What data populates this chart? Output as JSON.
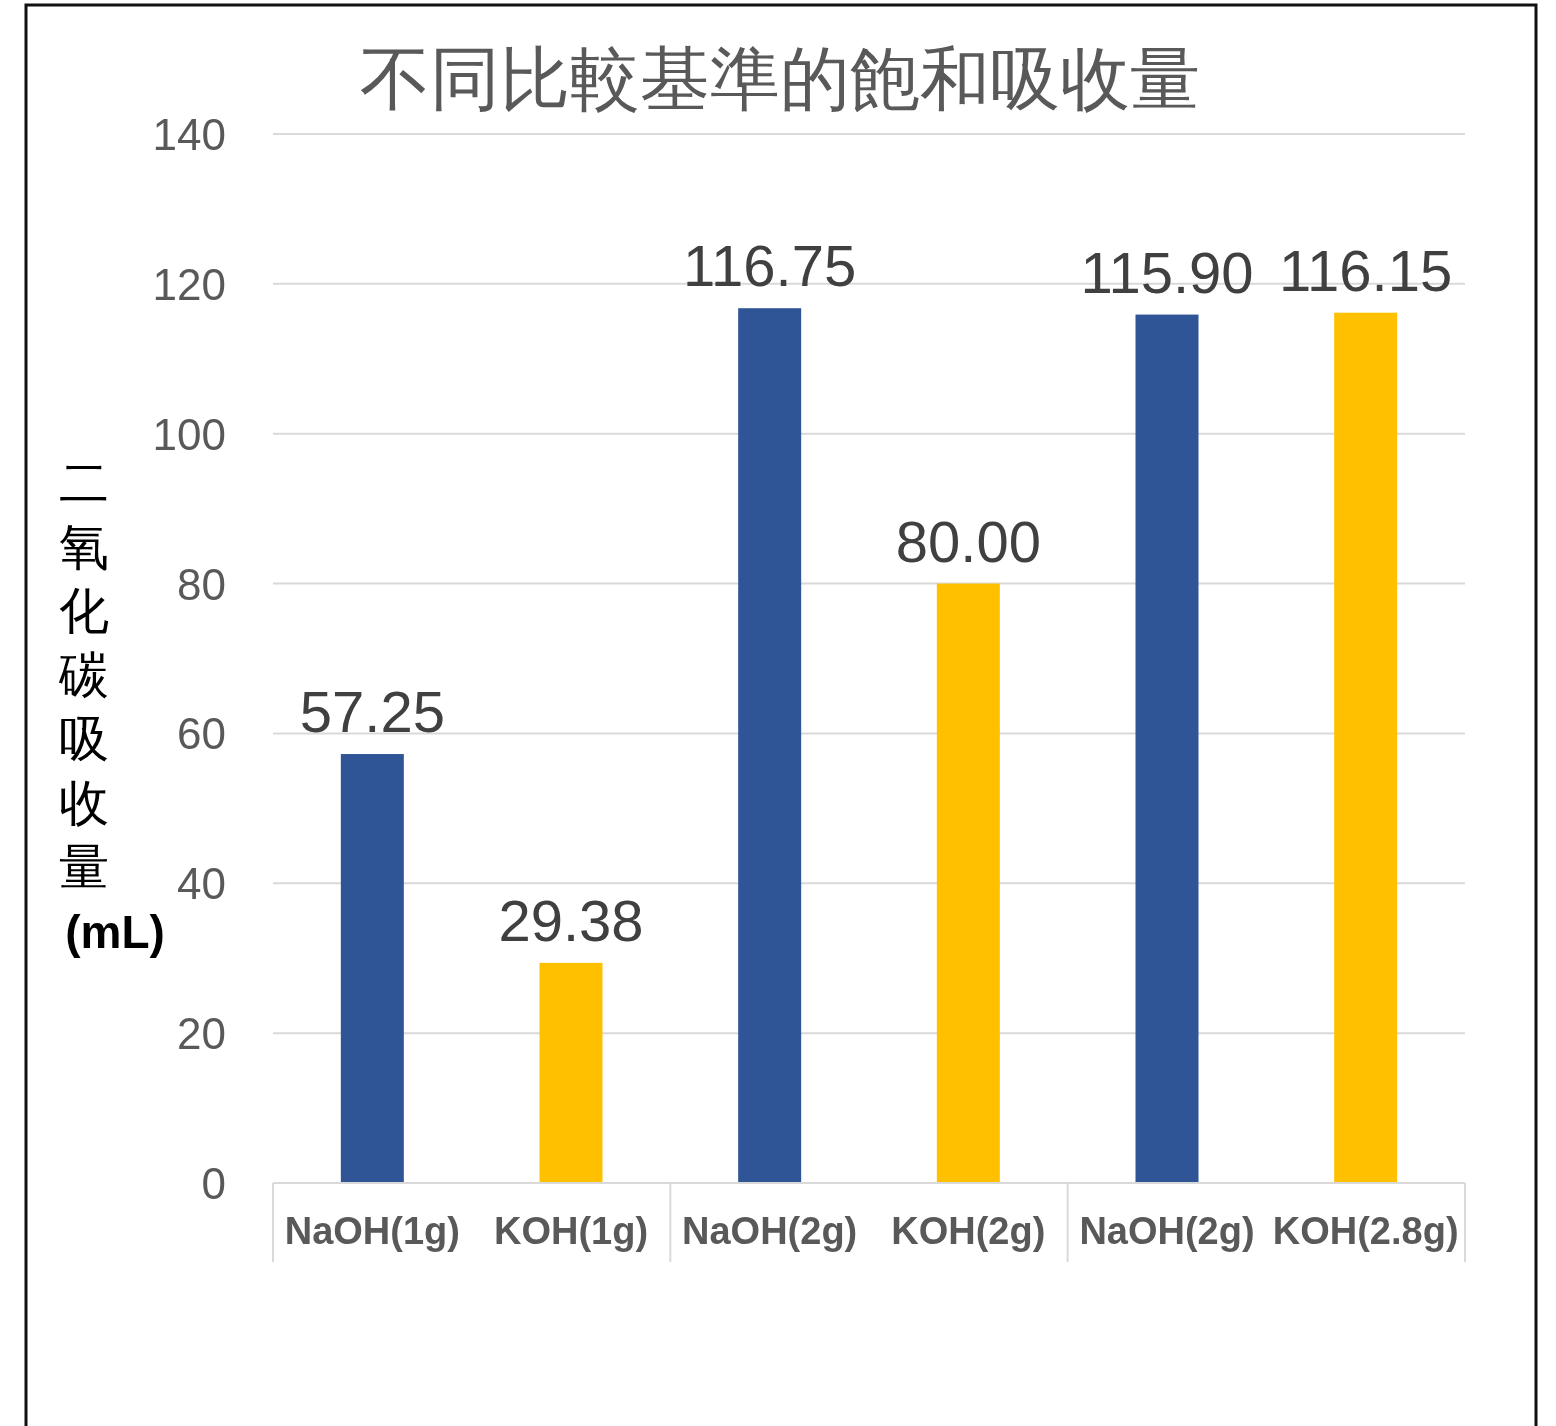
{
  "chart_data": {
    "type": "bar",
    "title": "不同比較基準的飽和吸收量",
    "ylabel": "二氧化碳吸收量(mL)",
    "categories": [
      "NaOH(1g)",
      "KOH(1g)",
      "NaOH(2g)",
      "KOH(2g)",
      "NaOH(2g)",
      "KOH(2.8g)"
    ],
    "values": [
      57.25,
      29.38,
      116.75,
      80.0,
      115.9,
      116.15
    ],
    "value_labels": [
      "57.25",
      "29.38",
      "116.75",
      "80.00",
      "115.90",
      "116.15"
    ],
    "colors": [
      "#2f5597",
      "#ffc000",
      "#2f5597",
      "#ffc000",
      "#2f5597",
      "#ffc000"
    ],
    "ylim": [
      0,
      140
    ],
    "yticks": [
      0,
      20,
      40,
      60,
      80,
      100,
      120,
      140
    ],
    "grid": "y"
  }
}
